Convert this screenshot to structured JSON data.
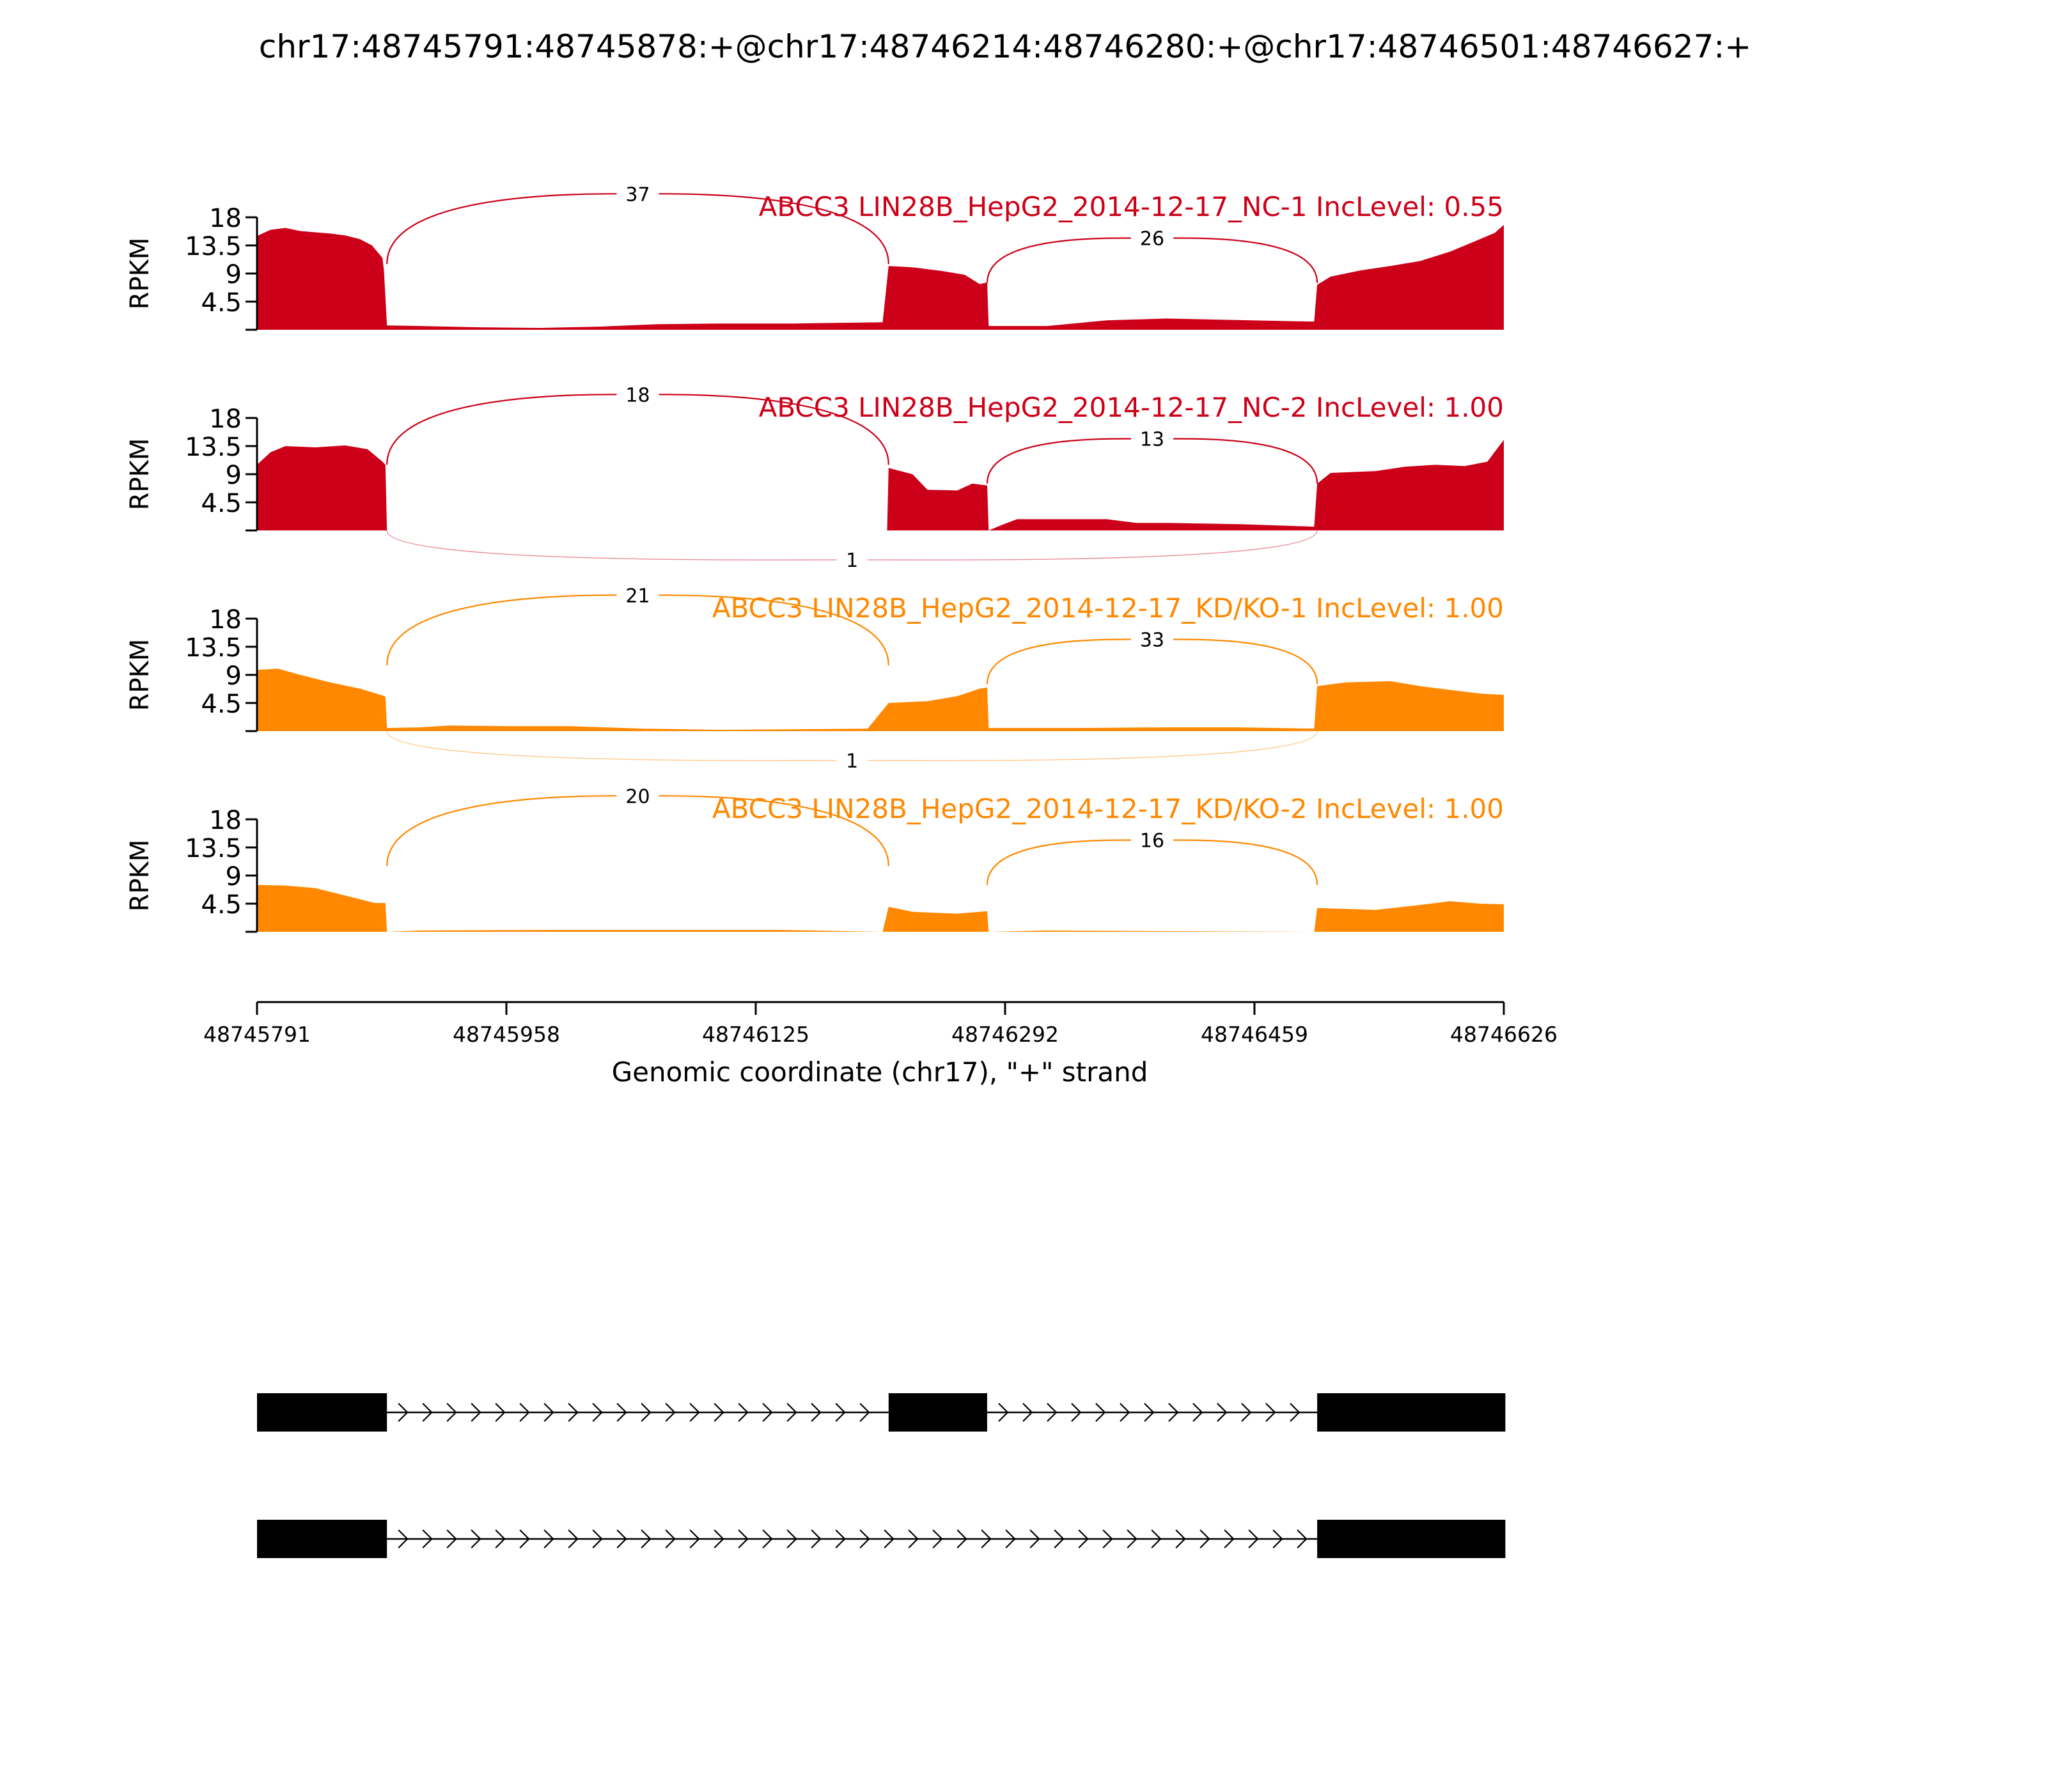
{
  "chart_data": {
    "type": "area",
    "title": "chr17:48745791:48745878:+@chr17:48746214:48746280:+@chr17:48746501:48746627:+",
    "xlabel": "Genomic coordinate (chr17), \"+\" strand",
    "ylabel": "RPKM",
    "xlim": [
      48745791,
      48746626
    ],
    "ylim": [
      0,
      18
    ],
    "yticks": [
      "18",
      "13.5",
      "9",
      "4.5"
    ],
    "xticks": [
      "48745791",
      "48745958",
      "48746125",
      "48746292",
      "48746459",
      "48746626"
    ],
    "exons": [
      {
        "start": 48745791,
        "end": 48745878
      },
      {
        "start": 48746214,
        "end": 48746280
      },
      {
        "start": 48746501,
        "end": 48746627
      }
    ],
    "isoforms": [
      {
        "exons": [
          0,
          1,
          2
        ]
      },
      {
        "exons": [
          0,
          2
        ]
      }
    ],
    "series": [
      {
        "name": "ABCC3 LIN28B_HepG2_2014-12-17_NC-1 IncLevel: 0.55",
        "color": "#cc0018",
        "coverage": [
          [
            48745791,
            15.0
          ],
          [
            48745800,
            16.0
          ],
          [
            48745810,
            16.3
          ],
          [
            48745820,
            15.8
          ],
          [
            48745830,
            15.6
          ],
          [
            48745840,
            15.4
          ],
          [
            48745850,
            15.1
          ],
          [
            48745860,
            14.5
          ],
          [
            48745868,
            13.5
          ],
          [
            48745875,
            11.5
          ],
          [
            48745876,
            9.5
          ],
          [
            48745878,
            0.7
          ],
          [
            48745900,
            0.6
          ],
          [
            48745940,
            0.4
          ],
          [
            48745980,
            0.3
          ],
          [
            48746020,
            0.5
          ],
          [
            48746060,
            0.9
          ],
          [
            48746100,
            1.0
          ],
          [
            48746150,
            1.0
          ],
          [
            48746210,
            1.2
          ],
          [
            48746214,
            10.2
          ],
          [
            48746230,
            10.0
          ],
          [
            48746250,
            9.4
          ],
          [
            48746265,
            8.8
          ],
          [
            48746275,
            7.3
          ],
          [
            48746280,
            7.6
          ],
          [
            48746281,
            0.6
          ],
          [
            48746320,
            0.6
          ],
          [
            48746360,
            1.5
          ],
          [
            48746400,
            1.8
          ],
          [
            48746440,
            1.6
          ],
          [
            48746499,
            1.3
          ],
          [
            48746501,
            7.2
          ],
          [
            48746510,
            8.5
          ],
          [
            48746530,
            9.5
          ],
          [
            48746550,
            10.2
          ],
          [
            48746570,
            11.0
          ],
          [
            48746590,
            12.5
          ],
          [
            48746605,
            14.0
          ],
          [
            48746620,
            15.5
          ],
          [
            48746626,
            16.8
          ]
        ],
        "junctions": [
          {
            "from": 48745878,
            "to": 48746214,
            "count": "37",
            "side": "top"
          },
          {
            "from": 48746280,
            "to": 48746501,
            "count": "26",
            "side": "top"
          }
        ]
      },
      {
        "name": "ABCC3 LIN28B_HepG2_2014-12-17_NC-2 IncLevel: 1.00",
        "color": "#cc0018",
        "coverage": [
          [
            48745791,
            10.5
          ],
          [
            48745800,
            12.5
          ],
          [
            48745810,
            13.5
          ],
          [
            48745830,
            13.3
          ],
          [
            48745850,
            13.6
          ],
          [
            48745865,
            13.0
          ],
          [
            48745875,
            11.0
          ],
          [
            48745877,
            10.5
          ],
          [
            48745878,
            0.0
          ],
          [
            48746213,
            0.0
          ],
          [
            48746214,
            10.0
          ],
          [
            48746230,
            9.0
          ],
          [
            48746240,
            6.5
          ],
          [
            48746260,
            6.4
          ],
          [
            48746270,
            7.5
          ],
          [
            48746280,
            7.2
          ],
          [
            48746281,
            0.0
          ],
          [
            48746290,
            0.9
          ],
          [
            48746300,
            1.8
          ],
          [
            48746360,
            1.8
          ],
          [
            48746380,
            1.2
          ],
          [
            48746400,
            1.2
          ],
          [
            48746450,
            1.0
          ],
          [
            48746499,
            0.6
          ],
          [
            48746501,
            7.5
          ],
          [
            48746510,
            9.2
          ],
          [
            48746540,
            9.5
          ],
          [
            48746560,
            10.2
          ],
          [
            48746580,
            10.5
          ],
          [
            48746600,
            10.3
          ],
          [
            48746615,
            11.0
          ],
          [
            48746626,
            14.5
          ]
        ],
        "junctions": [
          {
            "from": 48745878,
            "to": 48746214,
            "count": "18",
            "side": "top"
          },
          {
            "from": 48746280,
            "to": 48746501,
            "count": "13",
            "side": "top"
          },
          {
            "from": 48745878,
            "to": 48746501,
            "count": "1",
            "side": "bottom"
          }
        ]
      },
      {
        "name": "ABCC3 LIN28B_HepG2_2014-12-17_KD/KO-1 IncLevel: 1.00",
        "color": "#ff8800",
        "coverage": [
          [
            48745791,
            9.8
          ],
          [
            48745805,
            10.0
          ],
          [
            48745820,
            9.0
          ],
          [
            48745840,
            7.8
          ],
          [
            48745860,
            6.8
          ],
          [
            48745875,
            5.7
          ],
          [
            48745877,
            5.5
          ],
          [
            48745878,
            0.5
          ],
          [
            48745900,
            0.6
          ],
          [
            48745920,
            0.9
          ],
          [
            48745960,
            0.8
          ],
          [
            48746000,
            0.8
          ],
          [
            48746050,
            0.4
          ],
          [
            48746100,
            0.2
          ],
          [
            48746150,
            0.3
          ],
          [
            48746200,
            0.4
          ],
          [
            48746214,
            4.5
          ],
          [
            48746240,
            4.8
          ],
          [
            48746260,
            5.6
          ],
          [
            48746275,
            6.8
          ],
          [
            48746280,
            7.0
          ],
          [
            48746281,
            0.5
          ],
          [
            48746340,
            0.5
          ],
          [
            48746400,
            0.6
          ],
          [
            48746450,
            0.6
          ],
          [
            48746499,
            0.4
          ],
          [
            48746501,
            7.2
          ],
          [
            48746520,
            7.8
          ],
          [
            48746550,
            8.0
          ],
          [
            48746570,
            7.2
          ],
          [
            48746590,
            6.6
          ],
          [
            48746610,
            6.0
          ],
          [
            48746626,
            5.8
          ]
        ],
        "junctions": [
          {
            "from": 48745878,
            "to": 48746214,
            "count": "21",
            "side": "top"
          },
          {
            "from": 48746280,
            "to": 48746501,
            "count": "33",
            "side": "top"
          },
          {
            "from": 48745878,
            "to": 48746501,
            "count": "1",
            "side": "bottom"
          }
        ]
      },
      {
        "name": "ABCC3 LIN28B_HepG2_2014-12-17_KD/KO-2 IncLevel: 1.00",
        "color": "#ff8800",
        "coverage": [
          [
            48745791,
            7.5
          ],
          [
            48745810,
            7.4
          ],
          [
            48745830,
            7.0
          ],
          [
            48745850,
            5.8
          ],
          [
            48745870,
            4.6
          ],
          [
            48745877,
            4.6
          ],
          [
            48745878,
            0.0
          ],
          [
            48745900,
            0.2
          ],
          [
            48745990,
            0.3
          ],
          [
            48746050,
            0.3
          ],
          [
            48746140,
            0.3
          ],
          [
            48746210,
            0.0
          ],
          [
            48746214,
            4.0
          ],
          [
            48746230,
            3.2
          ],
          [
            48746260,
            2.9
          ],
          [
            48746280,
            3.3
          ],
          [
            48746281,
            0.0
          ],
          [
            48746320,
            0.2
          ],
          [
            48746400,
            0.1
          ],
          [
            48746499,
            0.0
          ],
          [
            48746501,
            3.8
          ],
          [
            48746540,
            3.5
          ],
          [
            48746570,
            4.3
          ],
          [
            48746590,
            4.9
          ],
          [
            48746610,
            4.5
          ],
          [
            48746626,
            4.4
          ]
        ],
        "junctions": [
          {
            "from": 48745878,
            "to": 48746214,
            "count": "20",
            "side": "top"
          },
          {
            "from": 48746280,
            "to": 48746501,
            "count": "16",
            "side": "top"
          }
        ]
      }
    ]
  }
}
